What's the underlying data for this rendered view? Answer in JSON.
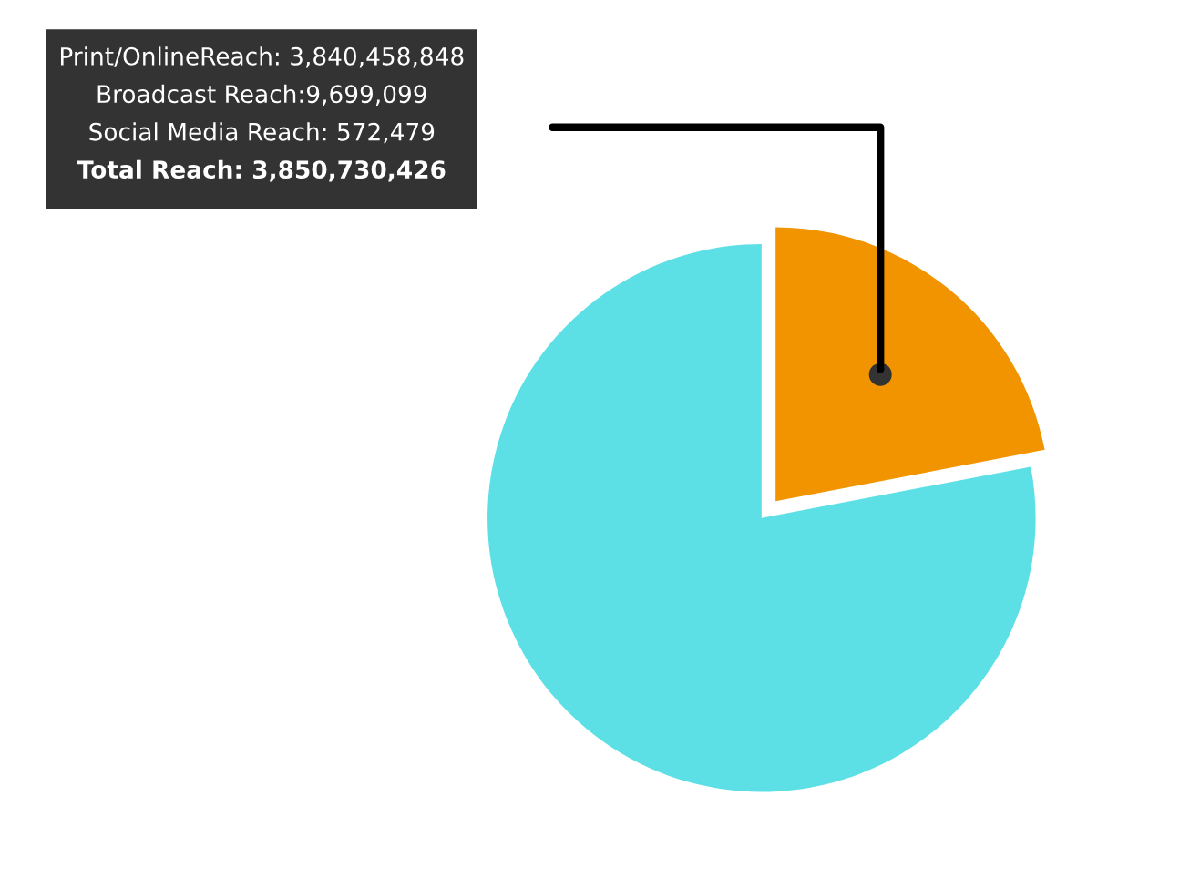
{
  "chart_data": {
    "type": "pie",
    "categories": [
      null,
      null
    ],
    "values": [
      22,
      78
    ],
    "colors": [
      "#f29400",
      "#5ce0e6"
    ],
    "annotations": [
      "Print/OnlineReach: 3,840,458,848",
      "Broadcast Reach:9,699,099",
      "Social Media Reach: 572,479",
      "Total Reach: 3,850,730,426"
    ]
  }
}
